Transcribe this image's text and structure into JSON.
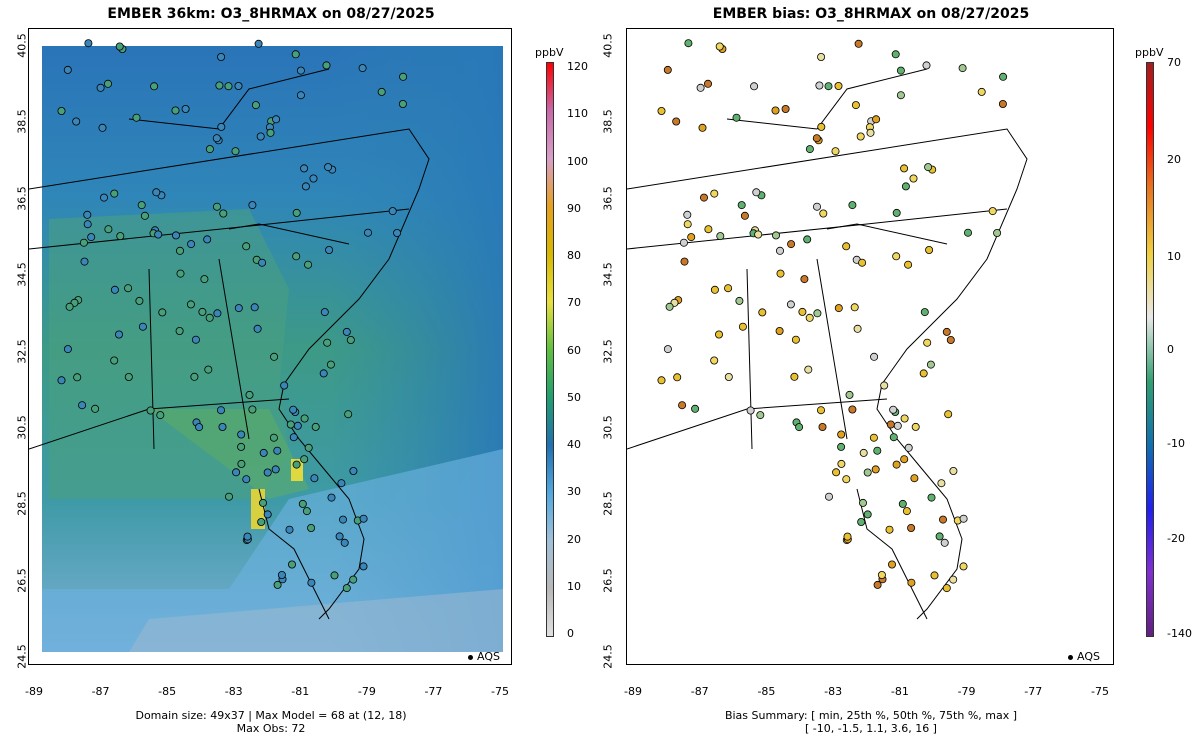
{
  "left_panel": {
    "title": "EMBER 36km: O3_8HRMAX on 08/27/2025",
    "footer_line1": "Domain size: 49x37 | Max Model = 68 at (12, 18)",
    "footer_line2": "Max Obs: 72",
    "colorbar_unit": "ppbV",
    "colorbar_labels": [
      "120",
      "110",
      "100",
      "90",
      "80",
      "70",
      "60",
      "50",
      "40",
      "30",
      "20",
      "10",
      "0"
    ],
    "colorbar_colors": [
      "#ff0000",
      "#c868a8",
      "#d8a0c8",
      "#e8a020",
      "#d8b800",
      "#e8e040",
      "#60c040",
      "#20a070",
      "#2070b0",
      "#50a8e0",
      "#a0c0d8",
      "#b8b8b8",
      "#e0e0e0"
    ],
    "legend_label": "AQS"
  },
  "right_panel": {
    "title": "EMBER bias: O3_8HRMAX on 08/27/2025",
    "footer_line1": "Bias Summary: [ min, 25th %, 50th %, 75th %, max ]",
    "footer_line2": "[ -10,   -1.5,   1.1,   3.6,   16 ]",
    "colorbar_unit": "ppbV",
    "colorbar_labels": [
      "70",
      "20",
      "10",
      "0",
      "-10",
      "-20",
      "-140"
    ],
    "colorbar_colors": [
      "#a02020",
      "#ff0000",
      "#e87820",
      "#f0d040",
      "#e8e8e8",
      "#30a070",
      "#1070b0",
      "#2020f0",
      "#8030d0",
      "#602080"
    ],
    "legend_label": "AQS"
  },
  "axes": {
    "y_ticks": [
      "40.5",
      "38.5",
      "36.5",
      "34.5",
      "32.5",
      "30.5",
      "28.5",
      "26.5",
      "24.5"
    ],
    "x_ticks": [
      "-89",
      "-87",
      "-85",
      "-83",
      "-81",
      "-79",
      "-77",
      "-75"
    ]
  }
}
